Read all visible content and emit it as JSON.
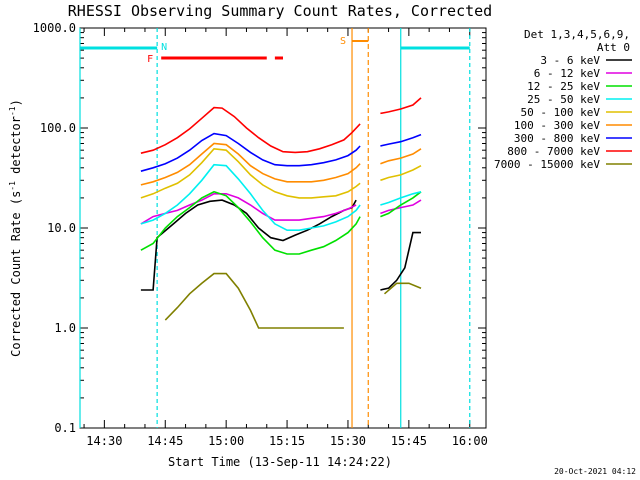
{
  "chart_data": {
    "type": "line",
    "title": "RHESSI Observing Summary Count Rates, Corrected",
    "xlabel": "Start Time (13-Sep-11 14:24:22)",
    "ylabel": "Corrected Count Rate (s⁻¹ detector⁻¹)",
    "ylabel_main": "Corrected Count Rate (s",
    "ylabel_mid": " detector",
    "ylabel_end": ")",
    "ylabel_sup": "-1",
    "yscale": "log",
    "ylim": [
      0.1,
      1000.0
    ],
    "y_ticks": [
      {
        "value": 0.1,
        "label": "0.1"
      },
      {
        "value": 1.0,
        "label": "1.0"
      },
      {
        "value": 10.0,
        "label": "10.0"
      },
      {
        "value": 100.0,
        "label": "100.0"
      },
      {
        "value": 1000.0,
        "label": "1000.0"
      }
    ],
    "xlim": [
      "14:24",
      "16:04"
    ],
    "x_ticks": [
      {
        "value": "14:30",
        "label": "14:30"
      },
      {
        "value": "14:45",
        "label": "14:45"
      },
      {
        "value": "15:00",
        "label": "15:00"
      },
      {
        "value": "15:15",
        "label": "15:15"
      },
      {
        "value": "15:30",
        "label": "15:30"
      },
      {
        "value": "15:45",
        "label": "15:45"
      },
      {
        "value": "16:00",
        "label": "16:00"
      }
    ],
    "legend": {
      "header1": "Det 1,3,4,5,6,9,",
      "header2": "Att 0",
      "placement": "right"
    },
    "footer": "20-Oct-2021 04:12",
    "series": [
      {
        "name": "3 - 6 keV",
        "color": "#000000",
        "points": [
          [
            "14:39",
            2.4
          ],
          [
            "14:42",
            2.4
          ],
          [
            "14:43",
            8
          ],
          [
            "14:47",
            11
          ],
          [
            "14:50",
            14
          ],
          [
            "14:53",
            17
          ],
          [
            "14:56",
            18.5
          ],
          [
            "14:59",
            19
          ],
          [
            "15:02",
            17
          ],
          [
            "15:05",
            14
          ],
          [
            "15:08",
            10
          ],
          [
            "15:11",
            8
          ],
          [
            "15:14",
            7.5
          ],
          [
            "15:17",
            8.5
          ],
          [
            "15:20",
            9.5
          ],
          [
            "15:23",
            11
          ],
          [
            "15:26",
            13
          ],
          [
            "15:29",
            15
          ],
          [
            "15:31",
            16
          ],
          [
            "15:32",
            19
          ]
        ],
        "points2": [
          [
            "15:38",
            2.4
          ],
          [
            "15:40",
            2.5
          ],
          [
            "15:42",
            3
          ],
          [
            "15:44",
            4
          ],
          [
            "15:46",
            9
          ],
          [
            "15:48",
            9
          ]
        ]
      },
      {
        "name": "6 - 12 keV",
        "color": "#e000e0",
        "points": [
          [
            "14:39",
            11
          ],
          [
            "14:42",
            13
          ],
          [
            "14:45",
            14
          ],
          [
            "14:48",
            15
          ],
          [
            "14:51",
            17
          ],
          [
            "14:54",
            19
          ],
          [
            "14:57",
            22
          ],
          [
            "15:00",
            22
          ],
          [
            "15:03",
            20
          ],
          [
            "15:06",
            17
          ],
          [
            "15:09",
            14
          ],
          [
            "15:12",
            12
          ],
          [
            "15:15",
            12
          ],
          [
            "15:18",
            12
          ],
          [
            "15:21",
            12.5
          ],
          [
            "15:24",
            13
          ],
          [
            "15:27",
            14
          ],
          [
            "15:30",
            15.5
          ],
          [
            "15:32",
            17
          ]
        ],
        "points2": [
          [
            "15:38",
            14
          ],
          [
            "15:40",
            15
          ],
          [
            "15:43",
            16
          ],
          [
            "15:46",
            17
          ],
          [
            "15:48",
            19
          ]
        ]
      },
      {
        "name": "12 - 25 keV",
        "color": "#00e000",
        "points": [
          [
            "14:39",
            6
          ],
          [
            "14:42",
            7
          ],
          [
            "14:45",
            10
          ],
          [
            "14:48",
            13
          ],
          [
            "14:51",
            16
          ],
          [
            "14:54",
            20
          ],
          [
            "14:57",
            23
          ],
          [
            "15:00",
            21
          ],
          [
            "15:03",
            16
          ],
          [
            "15:06",
            11.5
          ],
          [
            "15:09",
            8
          ],
          [
            "15:12",
            6
          ],
          [
            "15:15",
            5.5
          ],
          [
            "15:18",
            5.5
          ],
          [
            "15:21",
            6
          ],
          [
            "15:24",
            6.5
          ],
          [
            "15:27",
            7.5
          ],
          [
            "15:30",
            9
          ],
          [
            "15:32",
            11
          ],
          [
            "15:33",
            13
          ]
        ],
        "points2": [
          [
            "15:38",
            13
          ],
          [
            "15:40",
            14
          ],
          [
            "15:43",
            17
          ],
          [
            "15:46",
            20
          ],
          [
            "15:48",
            23
          ]
        ]
      },
      {
        "name": "25 - 50 keV",
        "color": "#00f0f0",
        "points": [
          [
            "14:39",
            11
          ],
          [
            "14:42",
            12
          ],
          [
            "14:45",
            14
          ],
          [
            "14:48",
            17
          ],
          [
            "14:51",
            22
          ],
          [
            "14:54",
            30
          ],
          [
            "14:57",
            43
          ],
          [
            "15:00",
            42
          ],
          [
            "15:03",
            31
          ],
          [
            "15:06",
            22
          ],
          [
            "15:09",
            15
          ],
          [
            "15:12",
            11
          ],
          [
            "15:15",
            9.5
          ],
          [
            "15:18",
            9.5
          ],
          [
            "15:21",
            10
          ],
          [
            "15:24",
            10.5
          ],
          [
            "15:27",
            11.5
          ],
          [
            "15:30",
            13
          ],
          [
            "15:32",
            15
          ],
          [
            "15:33",
            17
          ]
        ],
        "points2": [
          [
            "15:38",
            17
          ],
          [
            "15:40",
            18
          ],
          [
            "15:43",
            20
          ],
          [
            "15:46",
            22
          ],
          [
            "15:48",
            23
          ]
        ]
      },
      {
        "name": "50 - 100 keV",
        "color": "#e0c000",
        "points": [
          [
            "14:39",
            20
          ],
          [
            "14:42",
            22
          ],
          [
            "14:45",
            25
          ],
          [
            "14:48",
            28
          ],
          [
            "14:51",
            34
          ],
          [
            "14:54",
            45
          ],
          [
            "14:57",
            62
          ],
          [
            "15:00",
            60
          ],
          [
            "15:03",
            46
          ],
          [
            "15:06",
            34
          ],
          [
            "15:09",
            27
          ],
          [
            "15:12",
            23
          ],
          [
            "15:15",
            21
          ],
          [
            "15:18",
            20
          ],
          [
            "15:21",
            20
          ],
          [
            "15:24",
            20.5
          ],
          [
            "15:27",
            21
          ],
          [
            "15:30",
            23
          ],
          [
            "15:32",
            26
          ],
          [
            "15:33",
            28
          ]
        ],
        "points2": [
          [
            "15:38",
            30
          ],
          [
            "15:40",
            32
          ],
          [
            "15:43",
            34
          ],
          [
            "15:46",
            38
          ],
          [
            "15:48",
            42
          ]
        ]
      },
      {
        "name": "100 - 300 keV",
        "color": "#ff8c00",
        "points": [
          [
            "14:39",
            27
          ],
          [
            "14:42",
            29
          ],
          [
            "14:45",
            32
          ],
          [
            "14:48",
            36
          ],
          [
            "14:51",
            43
          ],
          [
            "14:54",
            55
          ],
          [
            "14:57",
            70
          ],
          [
            "15:00",
            68
          ],
          [
            "15:03",
            55
          ],
          [
            "15:06",
            42
          ],
          [
            "15:09",
            35
          ],
          [
            "15:12",
            31
          ],
          [
            "15:15",
            29
          ],
          [
            "15:18",
            29
          ],
          [
            "15:21",
            29
          ],
          [
            "15:24",
            30
          ],
          [
            "15:27",
            32
          ],
          [
            "15:30",
            35
          ],
          [
            "15:32",
            40
          ],
          [
            "15:33",
            44
          ]
        ],
        "points2": [
          [
            "15:38",
            44
          ],
          [
            "15:40",
            47
          ],
          [
            "15:43",
            50
          ],
          [
            "15:46",
            55
          ],
          [
            "15:48",
            62
          ]
        ]
      },
      {
        "name": "300 - 800 keV",
        "color": "#0000ff",
        "points": [
          [
            "14:39",
            37
          ],
          [
            "14:42",
            40
          ],
          [
            "14:45",
            44
          ],
          [
            "14:48",
            50
          ],
          [
            "14:51",
            60
          ],
          [
            "14:54",
            75
          ],
          [
            "14:57",
            88
          ],
          [
            "15:00",
            84
          ],
          [
            "15:03",
            70
          ],
          [
            "15:06",
            57
          ],
          [
            "15:09",
            48
          ],
          [
            "15:12",
            43
          ],
          [
            "15:15",
            42
          ],
          [
            "15:18",
            42
          ],
          [
            "15:21",
            43
          ],
          [
            "15:24",
            45
          ],
          [
            "15:27",
            48
          ],
          [
            "15:30",
            53
          ],
          [
            "15:32",
            60
          ],
          [
            "15:33",
            66
          ]
        ],
        "points2": [
          [
            "15:38",
            66
          ],
          [
            "15:40",
            69
          ],
          [
            "15:43",
            73
          ],
          [
            "15:46",
            80
          ],
          [
            "15:48",
            86
          ]
        ]
      },
      {
        "name": "800 - 7000 keV",
        "color": "#ff0000",
        "points": [
          [
            "14:39",
            56
          ],
          [
            "14:42",
            60
          ],
          [
            "14:45",
            68
          ],
          [
            "14:48",
            80
          ],
          [
            "14:51",
            98
          ],
          [
            "14:54",
            125
          ],
          [
            "14:57",
            160
          ],
          [
            "14:59",
            158
          ],
          [
            "15:02",
            130
          ],
          [
            "15:05",
            100
          ],
          [
            "15:08",
            80
          ],
          [
            "15:11",
            66
          ],
          [
            "15:14",
            58
          ],
          [
            "15:17",
            57
          ],
          [
            "15:20",
            58
          ],
          [
            "15:23",
            62
          ],
          [
            "15:26",
            68
          ],
          [
            "15:29",
            76
          ],
          [
            "15:31",
            90
          ],
          [
            "15:33",
            110
          ]
        ],
        "points2": [
          [
            "15:38",
            140
          ],
          [
            "15:40",
            145
          ],
          [
            "15:43",
            155
          ],
          [
            "15:46",
            170
          ],
          [
            "15:48",
            200
          ]
        ]
      },
      {
        "name": "7000 - 15000 keV",
        "color": "#808000",
        "points": [
          [
            "14:45",
            1.2
          ],
          [
            "14:48",
            1.6
          ],
          [
            "14:51",
            2.2
          ],
          [
            "14:54",
            2.8
          ],
          [
            "14:57",
            3.5
          ],
          [
            "15:00",
            3.5
          ],
          [
            "15:03",
            2.5
          ],
          [
            "15:06",
            1.5
          ],
          [
            "15:08",
            1.0
          ],
          [
            "15:11",
            1.0
          ],
          [
            "15:14",
            1.0
          ],
          [
            "15:17",
            1.0
          ],
          [
            "15:20",
            1.0
          ],
          [
            "15:23",
            1.0
          ],
          [
            "15:26",
            1.0
          ],
          [
            "15:29",
            1.0
          ]
        ],
        "points2": [
          [
            "15:39",
            2.2
          ],
          [
            "15:42",
            2.8
          ],
          [
            "15:45",
            2.8
          ],
          [
            "15:48",
            2.5
          ]
        ]
      }
    ],
    "annotations": [
      {
        "label": "N",
        "color": "#00e0e0"
      },
      {
        "label": "F",
        "color": "#ff0000"
      },
      {
        "label": "S",
        "color": "#ff8c00"
      }
    ]
  }
}
